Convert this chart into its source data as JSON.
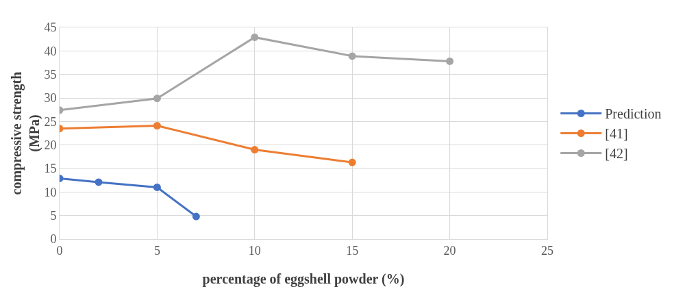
{
  "chart_data": {
    "type": "line",
    "xlabel": "percentage of eggshell powder (%)",
    "ylabel": "compressive strength (MPa)",
    "xlim": [
      0,
      25
    ],
    "xticks": [
      0,
      5,
      10,
      15,
      20,
      25
    ],
    "ylim": [
      0,
      45
    ],
    "yticks": [
      0,
      5,
      10,
      15,
      20,
      25,
      30,
      35,
      40,
      45
    ],
    "grid": true,
    "legend": "right",
    "marker": "circle",
    "line_style": "solid",
    "series": [
      {
        "name": "Prediction",
        "color": "#4472c4",
        "x": [
          0,
          2,
          5,
          7
        ],
        "values": [
          12.9,
          12.1,
          11,
          4.8
        ]
      },
      {
        "name": "[41]",
        "color": "#ed7d31",
        "x": [
          0,
          5,
          10,
          15
        ],
        "values": [
          23.5,
          24.1,
          19,
          16.3
        ]
      },
      {
        "name": "[42]",
        "color": "#a5a5a5",
        "x": [
          0,
          5,
          10,
          15,
          20
        ],
        "values": [
          27.4,
          29.9,
          42.9,
          38.9,
          37.8
        ]
      }
    ]
  }
}
